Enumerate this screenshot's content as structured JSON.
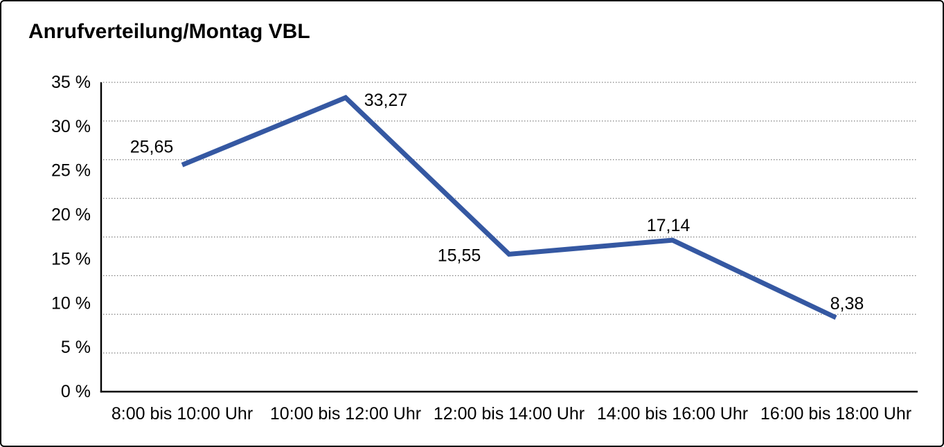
{
  "title": "Anrufverteilung/Montag VBL",
  "chart_data": {
    "type": "line",
    "title": "Anrufverteilung/Montag VBL",
    "categories": [
      "8:00 bis 10:00 Uhr",
      "10:00 bis 12:00 Uhr",
      "12:00 bis 14:00 Uhr",
      "14:00 bis 16:00 Uhr",
      "16:00 bis 18:00 Uhr"
    ],
    "values": [
      25.65,
      33.27,
      15.55,
      17.14,
      8.38
    ],
    "value_labels": [
      "25,65",
      "33,27",
      "15,55",
      "17,14",
      "8,38"
    ],
    "xlabel": "",
    "ylabel": "",
    "ylim": [
      0,
      35
    ],
    "ytick_step": 5,
    "ytick_labels": [
      "35 %",
      "30 %",
      "25 %",
      "20 %",
      "15 %",
      "10 %",
      "5 %",
      "0 %"
    ],
    "grid": true,
    "gridline_style": "dotted",
    "grid_divisions": 8,
    "legend": "none",
    "line_color": "#3558A2",
    "axis_color": "#000000",
    "text_color": "#000000"
  }
}
